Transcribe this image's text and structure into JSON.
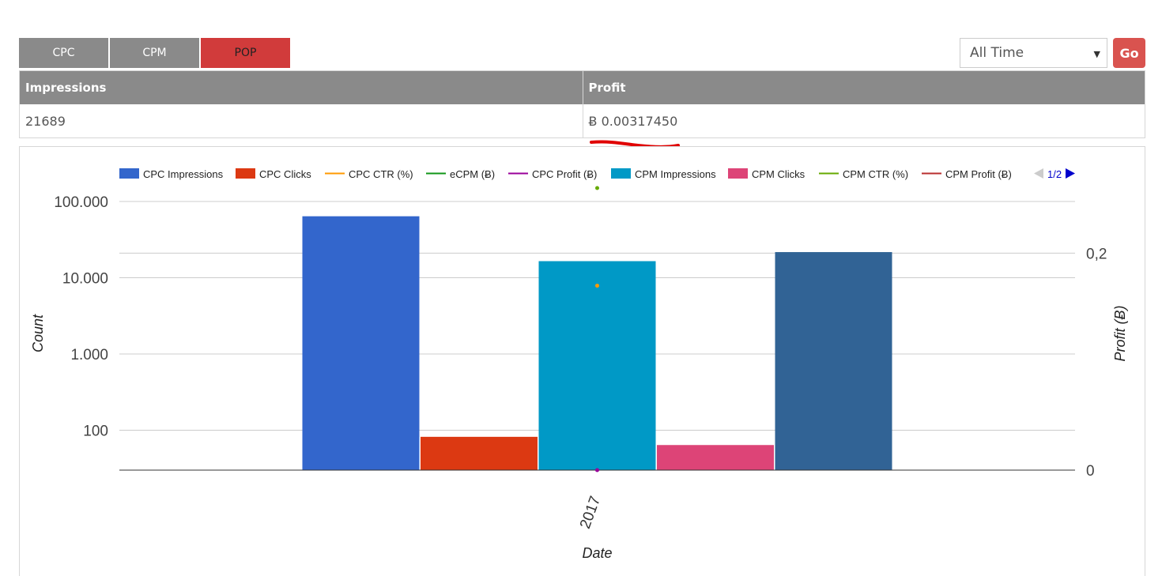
{
  "tabs": [
    {
      "label": "CPC",
      "active": false
    },
    {
      "label": "CPM",
      "active": false
    },
    {
      "label": "POP",
      "active": true
    }
  ],
  "range_select": {
    "value": "All Time",
    "caret": "▼"
  },
  "go_button": {
    "label": "Go",
    "color": "#d9534f"
  },
  "stats_table": {
    "headers": [
      "Impressions",
      "Profit"
    ],
    "values": [
      "21689",
      "Ƀ 0.00317450"
    ]
  },
  "annotation": {
    "description": "red underline mark",
    "color": "#e00000"
  },
  "legend": {
    "items": [
      {
        "label": "CPC Impressions",
        "color": "#3366cc",
        "marker": "box"
      },
      {
        "label": "CPC Clicks",
        "color": "#dc3912",
        "marker": "box"
      },
      {
        "label": "CPC CTR (%)",
        "color": "#ff9900",
        "marker": "line"
      },
      {
        "label": "eCPM (Ƀ)",
        "color": "#109618",
        "marker": "line"
      },
      {
        "label": "CPC Profit (Ƀ)",
        "color": "#990099",
        "marker": "line"
      },
      {
        "label": "CPM Impressions",
        "color": "#0099c6",
        "marker": "box"
      },
      {
        "label": "CPM Clicks",
        "color": "#dd4477",
        "marker": "box"
      },
      {
        "label": "CPM CTR (%)",
        "color": "#66aa00",
        "marker": "line"
      },
      {
        "label": "CPM Profit (Ƀ)",
        "color": "#b82e2e",
        "marker": "line"
      }
    ],
    "pager": {
      "text": "1/2",
      "prev_color": "#cccccc",
      "next_color": "#0000cc"
    }
  },
  "chart_data": {
    "type": "bar",
    "categories": [
      "2017"
    ],
    "xlabel": "Date",
    "ylabel": "Count",
    "y2label": "Profit (Ƀ)",
    "yscale": "log",
    "ylim": [
      30,
      150000
    ],
    "y_ticks": [
      {
        "value": 100,
        "label": "100"
      },
      {
        "value": 1000,
        "label": "1.000"
      },
      {
        "value": 10000,
        "label": "10.000"
      },
      {
        "value": 100000,
        "label": "100.000"
      }
    ],
    "y2lim": [
      0,
      0.26
    ],
    "y2_ticks": [
      {
        "value": 0,
        "label": "0"
      },
      {
        "value": 0.2,
        "label": "0,2"
      }
    ],
    "bars": [
      {
        "name": "CPC Impressions",
        "value": 64000,
        "color": "#3366cc"
      },
      {
        "name": "CPC Clicks",
        "value": 82,
        "color": "#dc3912"
      },
      {
        "name": "CPM Impressions",
        "value": 16500,
        "color": "#0099c6"
      },
      {
        "name": "CPM Clicks",
        "value": 64,
        "color": "#dd4477"
      },
      {
        "name": "",
        "value": 21689,
        "color": "#316395"
      }
    ],
    "points": [
      {
        "name": "eCPM (Ƀ)",
        "axis": "right",
        "value": 0.26,
        "color": "#66aa00"
      },
      {
        "name": "CPC CTR (%)",
        "axis": "right",
        "value": 0.17,
        "color": "#ff9900"
      },
      {
        "name": "CPC Profit (Ƀ)",
        "axis": "right",
        "value": 0.0,
        "color": "#990099"
      }
    ],
    "grid": true,
    "legend_position": "top"
  }
}
